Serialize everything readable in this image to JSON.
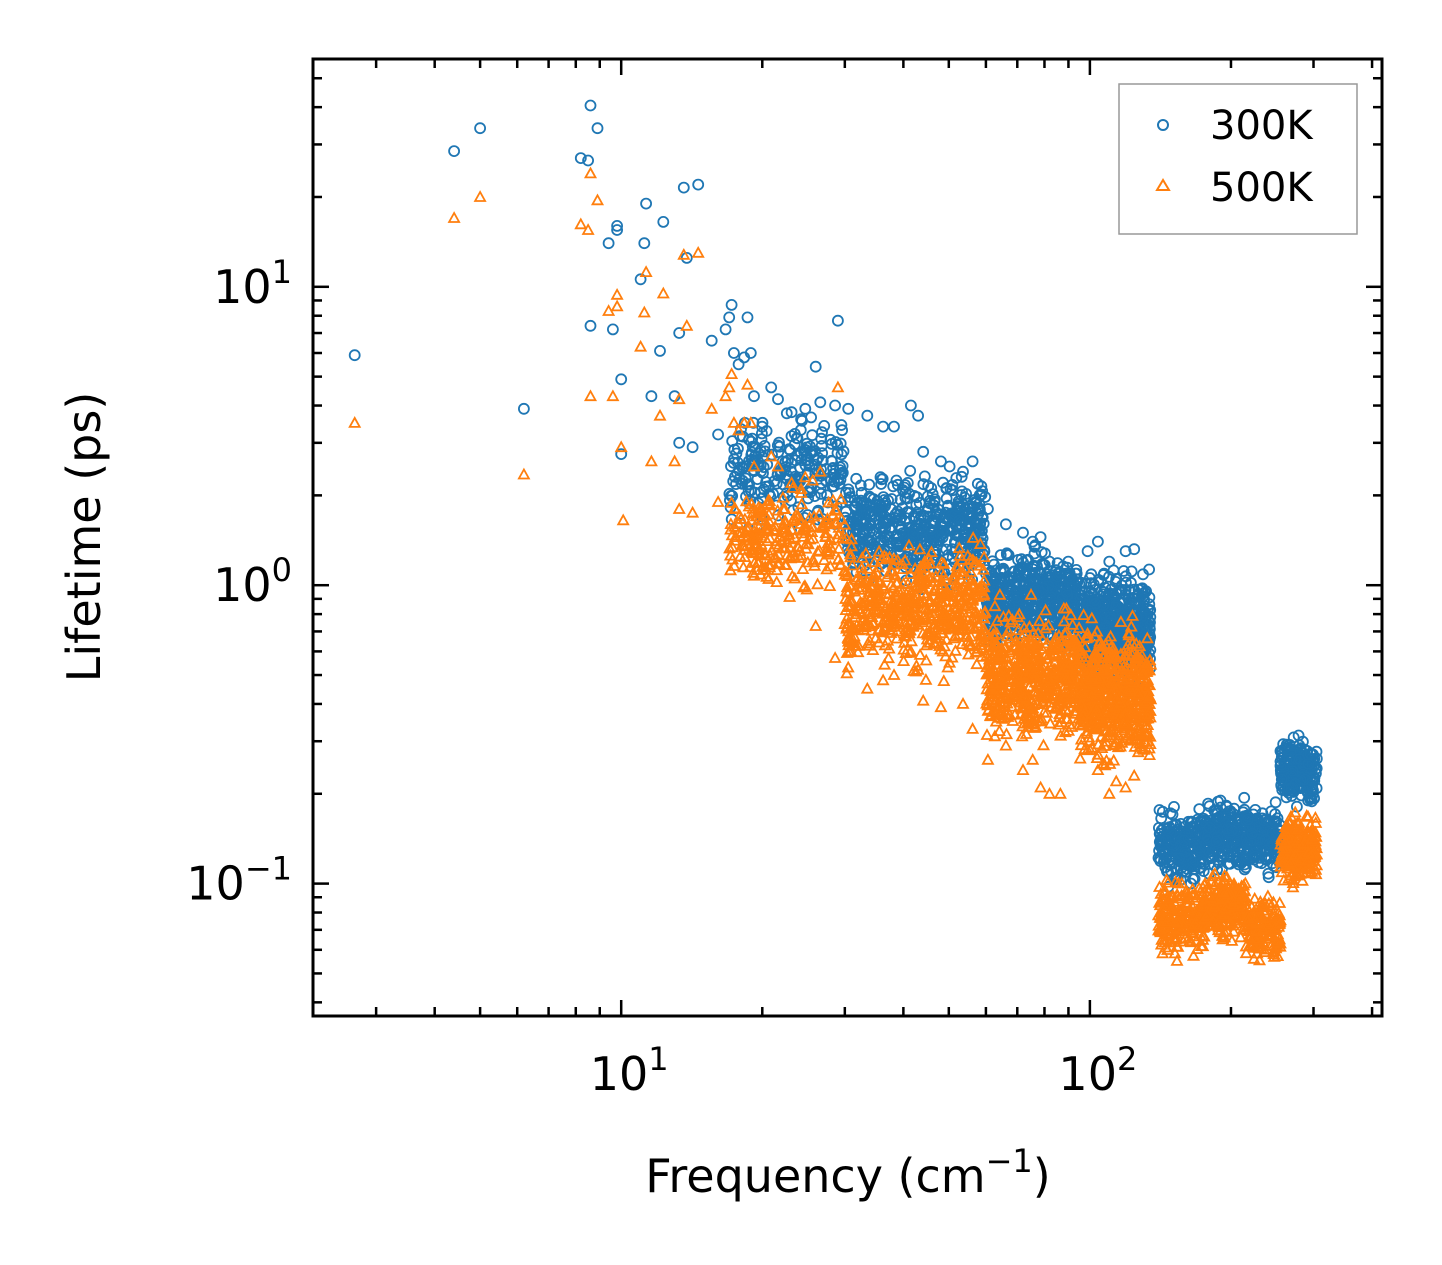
{
  "chart_data": {
    "type": "scatter",
    "xscale": "log",
    "yscale": "log",
    "xlabel": "Frequency (cm",
    "xlabel_exp": "−1",
    "xlabel_close": ")",
    "ylabel": "Lifetime (ps)",
    "xlim": [
      2.2,
      420
    ],
    "ylim": [
      0.036,
      58
    ],
    "x_ticks": [
      {
        "base": "10",
        "exp": "1",
        "value": 10
      },
      {
        "base": "10",
        "exp": "2",
        "value": 100
      }
    ],
    "y_ticks": [
      {
        "base": "10",
        "exp": "−1",
        "value": 0.1
      },
      {
        "base": "10",
        "exp": "0",
        "value": 1
      },
      {
        "base": "10",
        "exp": "1",
        "value": 10
      }
    ],
    "legend_position": "top-right",
    "series": [
      {
        "name": "300K",
        "marker": "circle",
        "color": "#1f77b4",
        "points": [
          [
            2.7,
            5.9
          ],
          [
            4.4,
            28.5
          ],
          [
            5.0,
            34.0
          ],
          [
            6.2,
            3.9
          ],
          [
            8.2,
            27.0
          ],
          [
            8.5,
            26.5
          ],
          [
            8.6,
            40.5
          ],
          [
            8.6,
            7.4
          ],
          [
            8.9,
            34.0
          ],
          [
            9.4,
            14.0
          ],
          [
            9.6,
            7.2
          ],
          [
            9.8,
            15.5
          ],
          [
            9.8,
            16.0
          ],
          [
            10.0,
            4.9
          ],
          [
            10.0,
            2.75
          ],
          [
            11.0,
            10.6
          ],
          [
            11.2,
            14.0
          ],
          [
            11.3,
            19.0
          ],
          [
            11.6,
            4.3
          ],
          [
            12.1,
            6.1
          ],
          [
            12.3,
            16.5
          ],
          [
            13.0,
            4.3
          ],
          [
            13.3,
            7.0
          ],
          [
            13.3,
            3.0
          ],
          [
            13.6,
            21.5
          ],
          [
            13.8,
            12.5
          ],
          [
            14.2,
            2.9
          ],
          [
            14.6,
            22.0
          ],
          [
            15.6,
            6.6
          ],
          [
            16.1,
            3.2
          ],
          [
            16.7,
            7.2
          ],
          [
            17.0,
            7.9
          ],
          [
            17.2,
            8.7
          ],
          [
            17.4,
            6.0
          ],
          [
            17.8,
            5.5
          ],
          [
            18.3,
            5.8
          ],
          [
            18.6,
            7.9
          ],
          [
            18.9,
            6.0
          ],
          [
            19.2,
            4.3
          ],
          [
            20.9,
            4.6
          ],
          [
            21.6,
            4.2
          ],
          [
            23.1,
            3.8
          ],
          [
            24.2,
            3.6
          ],
          [
            24.7,
            3.9
          ],
          [
            26.0,
            5.4
          ],
          [
            26.6,
            4.1
          ],
          [
            28.6,
            4.0
          ],
          [
            29.0,
            7.7
          ],
          [
            30.5,
            3.9
          ],
          [
            33.5,
            3.7
          ],
          [
            36.2,
            3.4
          ],
          [
            38.2,
            3.4
          ],
          [
            41.5,
            4.0
          ],
          [
            43.0,
            3.7
          ],
          [
            44.1,
            2.8
          ],
          [
            48.1,
            2.6
          ],
          [
            50.2,
            2.5
          ],
          [
            53.6,
            2.4
          ],
          [
            56.2,
            2.6
          ],
          [
            60.6,
            1.8
          ],
          [
            66.2,
            1.6
          ],
          [
            72.0,
            1.5
          ],
          [
            75.5,
            1.4
          ],
          [
            78.5,
            1.45
          ],
          [
            82.0,
            1.2
          ],
          [
            86.5,
            1.1
          ],
          [
            98.9,
            1.3
          ],
          [
            104.0,
            1.4
          ],
          [
            110.0,
            1.2
          ],
          [
            113.8,
            1.05
          ],
          [
            119.2,
            1.3
          ],
          [
            124.3,
            1.32
          ]
        ]
      },
      {
        "name": "500K",
        "marker": "triangle",
        "color": "#ff7f0e",
        "points": [
          [
            2.7,
            3.5
          ],
          [
            4.4,
            17.0
          ],
          [
            5.0,
            20.0
          ],
          [
            6.2,
            2.35
          ],
          [
            8.2,
            16.2
          ],
          [
            8.5,
            15.5
          ],
          [
            8.6,
            24.0
          ],
          [
            8.6,
            4.3
          ],
          [
            8.9,
            19.5
          ],
          [
            9.4,
            8.3
          ],
          [
            9.6,
            4.3
          ],
          [
            9.8,
            9.4
          ],
          [
            9.8,
            8.6
          ],
          [
            10.0,
            2.9
          ],
          [
            10.1,
            1.65
          ],
          [
            11.0,
            6.3
          ],
          [
            11.2,
            8.2
          ],
          [
            11.3,
            11.2
          ],
          [
            11.6,
            2.6
          ],
          [
            12.1,
            3.7
          ],
          [
            12.3,
            9.5
          ],
          [
            13.0,
            2.6
          ],
          [
            13.3,
            4.2
          ],
          [
            13.3,
            1.8
          ],
          [
            13.6,
            12.8
          ],
          [
            13.8,
            7.4
          ],
          [
            14.2,
            1.75
          ],
          [
            14.6,
            13.0
          ],
          [
            15.6,
            3.9
          ],
          [
            16.1,
            1.9
          ],
          [
            16.7,
            4.3
          ],
          [
            17.0,
            4.6
          ],
          [
            17.2,
            5.1
          ],
          [
            17.4,
            3.5
          ],
          [
            17.8,
            3.3
          ],
          [
            18.3,
            3.5
          ],
          [
            18.6,
            4.7
          ],
          [
            18.9,
            3.5
          ],
          [
            19.2,
            2.5
          ],
          [
            20.9,
            2.7
          ],
          [
            21.6,
            2.5
          ],
          [
            23.1,
            2.2
          ],
          [
            24.2,
            2.1
          ],
          [
            24.7,
            2.3
          ],
          [
            26.0,
            0.73
          ],
          [
            26.6,
            2.4
          ],
          [
            28.6,
            0.57
          ],
          [
            29.0,
            4.6
          ],
          [
            30.5,
            0.53
          ],
          [
            33.5,
            0.45
          ],
          [
            36.2,
            0.48
          ],
          [
            38.2,
            0.5
          ],
          [
            41.5,
            0.6
          ],
          [
            43.0,
            0.52
          ],
          [
            44.1,
            0.41
          ],
          [
            48.1,
            0.39
          ],
          [
            50.2,
            0.55
          ],
          [
            53.6,
            0.4
          ],
          [
            56.2,
            0.33
          ],
          [
            60.6,
            0.26
          ],
          [
            66.2,
            0.29
          ],
          [
            72.0,
            0.24
          ],
          [
            75.5,
            0.26
          ],
          [
            78.5,
            0.21
          ],
          [
            82.0,
            0.2
          ],
          [
            86.5,
            0.2
          ],
          [
            98.9,
            0.28
          ],
          [
            104.0,
            0.24
          ],
          [
            110.0,
            0.2
          ],
          [
            113.8,
            0.22
          ],
          [
            119.2,
            0.21
          ],
          [
            124.3,
            0.23
          ]
        ]
      }
    ],
    "bands": [
      {
        "series": "300K",
        "segments": [
          {
            "x_range": [
              17,
              30
            ],
            "y_range": [
              1.4,
              4.2
            ],
            "count": 240
          },
          {
            "x_range": [
              30,
              60
            ],
            "y_range": [
              0.9,
              2.6
            ],
            "count": 520
          },
          {
            "x_range": [
              60,
              95
            ],
            "y_range": [
              0.55,
              1.45
            ],
            "count": 520
          },
          {
            "x_range": [
              95,
              135
            ],
            "y_range": [
              0.42,
              1.25
            ],
            "count": 560
          },
          {
            "x_range": [
              140,
              175
            ],
            "y_range": [
              0.09,
              0.19
            ],
            "count": 200
          },
          {
            "x_range": [
              175,
              215
            ],
            "y_range": [
              0.1,
              0.21
            ],
            "count": 200
          },
          {
            "x_range": [
              215,
              255
            ],
            "y_range": [
              0.1,
              0.2
            ],
            "count": 160
          },
          {
            "x_range": [
              255,
              305
            ],
            "y_range": [
              0.17,
              0.33
            ],
            "count": 220
          }
        ]
      },
      {
        "series": "500K",
        "segments": [
          {
            "x_range": [
              17,
              30
            ],
            "y_range": [
              0.85,
              2.4
            ],
            "count": 240
          },
          {
            "x_range": [
              30,
              60
            ],
            "y_range": [
              0.46,
              1.55
            ],
            "count": 560
          },
          {
            "x_range": [
              60,
              95
            ],
            "y_range": [
              0.26,
              0.95
            ],
            "count": 560
          },
          {
            "x_range": [
              95,
              135
            ],
            "y_range": [
              0.22,
              0.85
            ],
            "count": 560
          },
          {
            "x_range": [
              140,
              175
            ],
            "y_range": [
              0.053,
              0.11
            ],
            "count": 200
          },
          {
            "x_range": [
              175,
              215
            ],
            "y_range": [
              0.06,
              0.115
            ],
            "count": 200
          },
          {
            "x_range": [
              215,
              255
            ],
            "y_range": [
              0.05,
              0.1
            ],
            "count": 160
          },
          {
            "x_range": [
              255,
              305
            ],
            "y_range": [
              0.095,
              0.18
            ],
            "count": 220
          }
        ]
      }
    ]
  }
}
